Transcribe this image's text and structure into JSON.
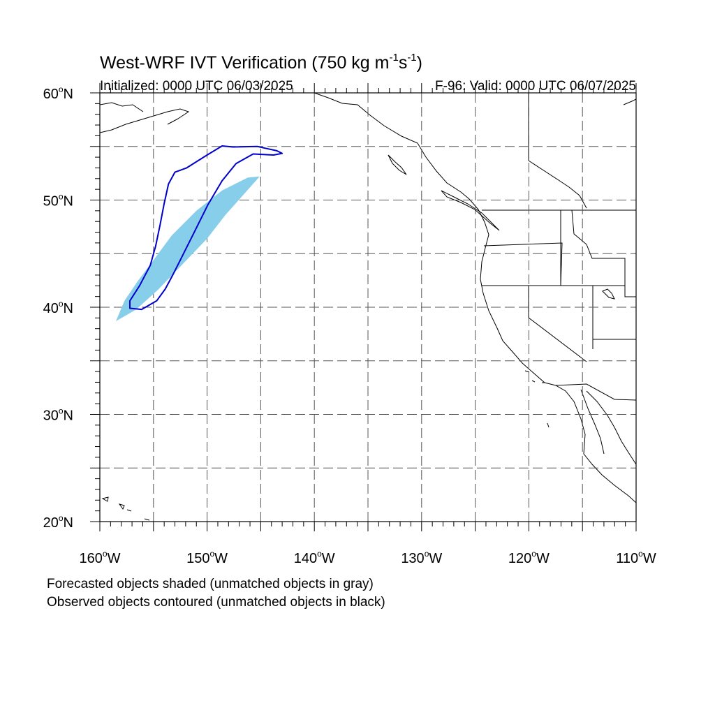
{
  "title": {
    "main": "West-WRF IVT Verification (750 kg m",
    "sup1": "-1",
    "mid": "s",
    "sup2": "-1",
    "close": ")"
  },
  "initialized": "Initialized: 0000 UTC 06/03/2025",
  "valid": "F-96: Valid: 0000 UTC 06/07/2025",
  "lat_labels": [
    {
      "deg": 60,
      "text": "60",
      "suffix": "N"
    },
    {
      "deg": 50,
      "text": "50",
      "suffix": "N"
    },
    {
      "deg": 40,
      "text": "40",
      "suffix": "N"
    },
    {
      "deg": 30,
      "text": "30",
      "suffix": "N"
    },
    {
      "deg": 20,
      "text": "20",
      "suffix": "N"
    }
  ],
  "lon_labels": [
    {
      "deg": -160,
      "text": "160",
      "suffix": "W"
    },
    {
      "deg": -150,
      "text": "150",
      "suffix": "W"
    },
    {
      "deg": -140,
      "text": "140",
      "suffix": "W"
    },
    {
      "deg": -130,
      "text": "130",
      "suffix": "W"
    },
    {
      "deg": -120,
      "text": "120",
      "suffix": "W"
    },
    {
      "deg": -110,
      "text": "110",
      "suffix": "W"
    }
  ],
  "map_extent": {
    "lon_min": -160,
    "lon_max": -110,
    "lat_min": 20,
    "lat_max": 60
  },
  "grid_lons": [
    -155,
    -150,
    -145,
    -140,
    -135,
    -130,
    -125,
    -120,
    -115
  ],
  "grid_lats": [
    25,
    30,
    35,
    40,
    45,
    50,
    55
  ],
  "colors": {
    "forecast_fill": "#87CEEB",
    "observed_contour": "#0000CD",
    "grid": "#555555",
    "coast": "#000000"
  },
  "forecast_object": [
    [
      -158.5,
      38.7
    ],
    [
      -156.6,
      39.8
    ],
    [
      -154.6,
      41.6
    ],
    [
      -152.3,
      44.0
    ],
    [
      -150.0,
      46.4
    ],
    [
      -148.3,
      48.6
    ],
    [
      -146.6,
      50.5
    ],
    [
      -145.1,
      52.2
    ],
    [
      -146.2,
      52.1
    ],
    [
      -148.6,
      50.9
    ],
    [
      -151.0,
      49.0
    ],
    [
      -153.3,
      46.7
    ],
    [
      -155.0,
      44.4
    ],
    [
      -156.5,
      42.4
    ],
    [
      -157.7,
      40.6
    ]
  ],
  "observed_object": [
    [
      -157.2,
      39.9
    ],
    [
      -156.1,
      39.8
    ],
    [
      -154.7,
      40.6
    ],
    [
      -153.9,
      41.7
    ],
    [
      -153.2,
      43.0
    ],
    [
      -152.3,
      44.8
    ],
    [
      -151.2,
      47.0
    ],
    [
      -149.9,
      49.6
    ],
    [
      -148.6,
      51.8
    ],
    [
      -147.3,
      53.4
    ],
    [
      -145.7,
      54.3
    ],
    [
      -143.8,
      54.2
    ],
    [
      -143.0,
      54.35
    ],
    [
      -143.5,
      54.6
    ],
    [
      -145.3,
      55.0
    ],
    [
      -147.6,
      54.95
    ],
    [
      -148.6,
      55.05
    ],
    [
      -150.0,
      54.2
    ],
    [
      -151.9,
      53.0
    ],
    [
      -153.0,
      52.6
    ],
    [
      -153.6,
      51.5
    ],
    [
      -154.0,
      49.7
    ],
    [
      -154.4,
      47.6
    ],
    [
      -154.8,
      45.7
    ],
    [
      -155.3,
      43.9
    ],
    [
      -156.3,
      42.0
    ],
    [
      -157.2,
      40.6
    ]
  ],
  "captions": {
    "line1": "Forecasted objects shaded (unmatched objects in gray)",
    "line2": "Observed objects contoured (unmatched objects in black)"
  }
}
